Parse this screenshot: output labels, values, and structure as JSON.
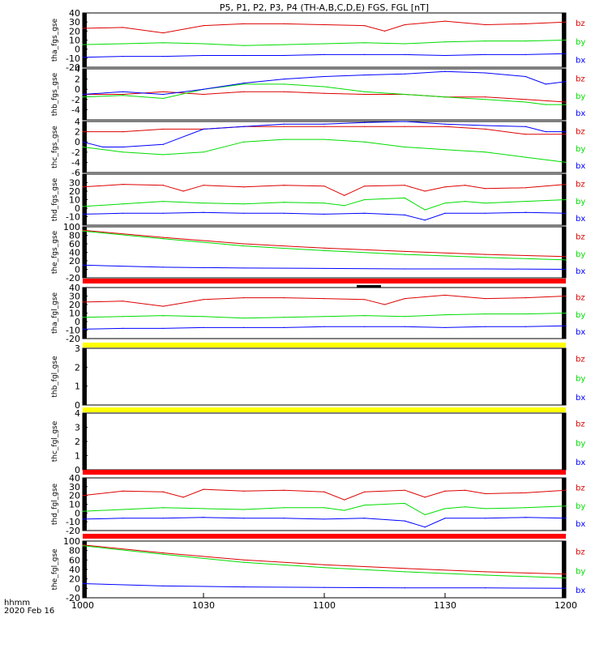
{
  "title": "P5, P1, P2, P3, P4 (TH-A,B,C,D,E) FGS, FGL [nT]",
  "colors": {
    "bx": "#0000ff",
    "by": "#00dd00",
    "bz": "#dd0000",
    "red_bar": "#ff0000",
    "yellow_bar": "#ffff00",
    "axis": "#000000"
  },
  "footer": {
    "line1": "hhmm",
    "line2": "2020 Feb 16"
  },
  "chart_data": {
    "type": "line",
    "x_range_minutes": [
      0,
      120
    ],
    "x_ticks": [
      {
        "label": "1000",
        "minute": 0
      },
      {
        "label": "1030",
        "minute": 30
      },
      {
        "label": "1100",
        "minute": 60
      },
      {
        "label": "1130",
        "minute": 90
      },
      {
        "label": "1200",
        "minute": 120
      }
    ],
    "panels": [
      {
        "ylabel": "tha_fgs_gse",
        "yrange": [
          -20,
          40
        ],
        "yticks": [
          "-20",
          "-10",
          "0",
          "10",
          "20",
          "30",
          "40"
        ],
        "legend": [
          "bz",
          "by",
          "bx"
        ],
        "series": [
          {
            "name": "bz",
            "color": "#dd0000",
            "x": [
              0,
              10,
              20,
              30,
              40,
              50,
              60,
              70,
              75,
              80,
              90,
              100,
              110,
              120
            ],
            "y": [
              23,
              24,
              18,
              26,
              28,
              28,
              27,
              26,
              20,
              27,
              31,
              27,
              28,
              30
            ]
          },
          {
            "name": "by",
            "color": "#00dd00",
            "x": [
              0,
              10,
              20,
              30,
              40,
              50,
              60,
              70,
              80,
              90,
              100,
              110,
              120
            ],
            "y": [
              5,
              6,
              7,
              6,
              4,
              5,
              6,
              7,
              6,
              8,
              9,
              9,
              10
            ]
          },
          {
            "name": "bx",
            "color": "#0000ff",
            "x": [
              0,
              10,
              20,
              30,
              40,
              50,
              60,
              70,
              80,
              90,
              100,
              110,
              120
            ],
            "y": [
              -9,
              -8,
              -8,
              -7,
              -7,
              -7,
              -6,
              -6,
              -6,
              -7,
              -6,
              -6,
              -5
            ]
          }
        ]
      },
      {
        "ylabel": "thb_fgs_gse",
        "yrange": [
          -6,
          4
        ],
        "yticks": [
          "-4",
          "-2",
          "0",
          "2",
          "4"
        ],
        "legend": [
          "bz",
          "by",
          "bx"
        ],
        "series": [
          {
            "name": "bz",
            "color": "#dd0000",
            "x": [
              0,
              10,
              20,
              30,
              40,
              50,
              60,
              70,
              80,
              90,
              100,
              110,
              120
            ],
            "y": [
              -1,
              -1,
              -0.5,
              -1,
              -0.5,
              -0.5,
              -0.8,
              -1,
              -1,
              -1.5,
              -1.5,
              -2,
              -2.5
            ]
          },
          {
            "name": "by",
            "color": "#00dd00",
            "x": [
              0,
              10,
              20,
              30,
              40,
              50,
              60,
              70,
              80,
              90,
              100,
              110,
              115,
              120
            ],
            "y": [
              -1.5,
              -1.2,
              -1.8,
              0,
              1,
              1,
              0.5,
              -0.5,
              -1,
              -1.5,
              -2,
              -2.5,
              -3,
              -3
            ]
          },
          {
            "name": "bx",
            "color": "#0000ff",
            "x": [
              0,
              10,
              20,
              30,
              40,
              50,
              60,
              70,
              80,
              90,
              100,
              110,
              115,
              120
            ],
            "y": [
              -1,
              -0.5,
              -1,
              0,
              1.2,
              2,
              2.5,
              2.8,
              3,
              3.5,
              3.2,
              2.5,
              1,
              1.5
            ]
          }
        ]
      },
      {
        "ylabel": "thc_fgs_gse",
        "yrange": [
          -6,
          4
        ],
        "yticks": [
          "-6",
          "-4",
          "-2",
          "0",
          "2",
          "4"
        ],
        "legend": [
          "bz",
          "by",
          "bx"
        ],
        "series": [
          {
            "name": "bz",
            "color": "#dd0000",
            "x": [
              0,
              10,
              20,
              30,
              40,
              50,
              60,
              70,
              80,
              90,
              100,
              110,
              120
            ],
            "y": [
              2,
              2,
              2.5,
              2.5,
              3,
              3,
              3,
              3,
              3,
              3,
              2.5,
              1.5,
              1.5
            ]
          },
          {
            "name": "by",
            "color": "#00dd00",
            "x": [
              0,
              10,
              20,
              30,
              40,
              50,
              60,
              70,
              80,
              90,
              100,
              110,
              120
            ],
            "y": [
              -1,
              -2,
              -2.5,
              -2,
              0,
              0.5,
              0.5,
              0,
              -1,
              -1.5,
              -2,
              -3,
              -4
            ]
          },
          {
            "name": "bx",
            "color": "#0000ff",
            "x": [
              0,
              5,
              10,
              20,
              30,
              40,
              50,
              60,
              70,
              80,
              90,
              100,
              110,
              115,
              120
            ],
            "y": [
              0,
              -1,
              -1,
              -0.5,
              2.5,
              3,
              3.5,
              3.5,
              3.8,
              4,
              3.5,
              3.2,
              3,
              2,
              2
            ]
          }
        ]
      },
      {
        "ylabel": "thd_fgs_gse",
        "yrange": [
          -20,
          40
        ],
        "yticks": [
          "-10",
          "0",
          "10",
          "20",
          "30"
        ],
        "legend": [
          "bz",
          "by",
          "bx"
        ],
        "series": [
          {
            "name": "bz",
            "color": "#dd0000",
            "x": [
              0,
              10,
              20,
              25,
              30,
              40,
              50,
              60,
              65,
              70,
              80,
              85,
              90,
              95,
              100,
              110,
              120
            ],
            "y": [
              25,
              28,
              27,
              20,
              27,
              25,
              27,
              26,
              15,
              26,
              27,
              20,
              25,
              27,
              23,
              24,
              28
            ]
          },
          {
            "name": "by",
            "color": "#00dd00",
            "x": [
              0,
              10,
              20,
              30,
              40,
              50,
              60,
              65,
              70,
              80,
              85,
              90,
              95,
              100,
              110,
              120
            ],
            "y": [
              2,
              5,
              8,
              6,
              5,
              7,
              6,
              3,
              10,
              12,
              -2,
              6,
              8,
              6,
              8,
              10
            ]
          },
          {
            "name": "bx",
            "color": "#0000ff",
            "x": [
              0,
              10,
              20,
              30,
              40,
              50,
              60,
              70,
              80,
              85,
              90,
              100,
              110,
              120
            ],
            "y": [
              -7,
              -6,
              -6,
              -5,
              -6,
              -6,
              -7,
              -6,
              -8,
              -14,
              -6,
              -6,
              -5,
              -6
            ]
          }
        ]
      },
      {
        "ylabel": "the_fgs_gse",
        "yrange": [
          -20,
          100
        ],
        "yticks": [
          "-20",
          "0",
          "20",
          "40",
          "60",
          "80",
          "100"
        ],
        "legend": [
          "bz",
          "by",
          "bx"
        ],
        "series": [
          {
            "name": "bz",
            "color": "#dd0000",
            "x": [
              0,
              20,
              40,
              60,
              80,
              100,
              120
            ],
            "y": [
              92,
              75,
              60,
              50,
              42,
              35,
              30
            ]
          },
          {
            "name": "by",
            "color": "#00dd00",
            "x": [
              0,
              20,
              40,
              60,
              80,
              100,
              120
            ],
            "y": [
              90,
              72,
              55,
              44,
              35,
              28,
              22
            ]
          },
          {
            "name": "bx",
            "color": "#0000ff",
            "x": [
              0,
              20,
              40,
              60,
              80,
              100,
              120
            ],
            "y": [
              10,
              5,
              3,
              2,
              1,
              1,
              0
            ]
          }
        ]
      },
      {
        "ylabel": "tha_fgl_gse",
        "yrange": [
          -20,
          40
        ],
        "yticks": [
          "-20",
          "-10",
          "0",
          "10",
          "20",
          "30",
          "40"
        ],
        "legend": [
          "bz",
          "by",
          "bx"
        ],
        "series": [
          {
            "name": "bz",
            "color": "#dd0000",
            "x": [
              0,
              10,
              20,
              30,
              40,
              50,
              60,
              70,
              75,
              80,
              90,
              100,
              110,
              120
            ],
            "y": [
              23,
              24,
              18,
              26,
              28,
              28,
              27,
              26,
              20,
              27,
              31,
              27,
              28,
              30
            ]
          },
          {
            "name": "by",
            "color": "#00dd00",
            "x": [
              0,
              10,
              20,
              30,
              40,
              50,
              60,
              70,
              80,
              90,
              100,
              110,
              120
            ],
            "y": [
              5,
              6,
              7,
              6,
              4,
              5,
              6,
              7,
              6,
              8,
              9,
              9,
              10
            ]
          },
          {
            "name": "bx",
            "color": "#0000ff",
            "x": [
              0,
              10,
              20,
              30,
              40,
              50,
              60,
              70,
              80,
              90,
              100,
              110,
              120
            ],
            "y": [
              -9,
              -8,
              -8,
              -7,
              -7,
              -7,
              -6,
              -6,
              -6,
              -7,
              -6,
              -6,
              -5
            ]
          }
        ]
      },
      {
        "ylabel": "thb_fgl_gse",
        "yrange": [
          0,
          3
        ],
        "yticks": [
          "0",
          "1",
          "2",
          "3"
        ],
        "legend": [
          "bz",
          "by",
          "bx"
        ],
        "series": []
      },
      {
        "ylabel": "thc_fgl_gse",
        "yrange": [
          0,
          4
        ],
        "yticks": [
          "0",
          "1",
          "2",
          "3",
          "4"
        ],
        "legend": [
          "bz",
          "by",
          "bx"
        ],
        "series": []
      },
      {
        "ylabel": "thd_fgl_gse",
        "yrange": [
          -20,
          40
        ],
        "yticks": [
          "-20",
          "-10",
          "0",
          "10",
          "20",
          "30",
          "40"
        ],
        "legend": [
          "bz",
          "by",
          "bx"
        ],
        "series": [
          {
            "name": "bz",
            "color": "#dd0000",
            "x": [
              0,
              10,
              20,
              25,
              30,
              40,
              50,
              60,
              65,
              70,
              80,
              85,
              90,
              95,
              100,
              110,
              120
            ],
            "y": [
              20,
              25,
              24,
              18,
              27,
              25,
              26,
              24,
              15,
              24,
              26,
              18,
              25,
              26,
              22,
              23,
              26
            ]
          },
          {
            "name": "by",
            "color": "#00dd00",
            "x": [
              0,
              10,
              20,
              30,
              40,
              50,
              60,
              65,
              70,
              80,
              85,
              90,
              95,
              100,
              110,
              120
            ],
            "y": [
              2,
              4,
              6,
              5,
              4,
              6,
              6,
              3,
              9,
              11,
              -2,
              5,
              7,
              5,
              6,
              8
            ]
          },
          {
            "name": "bx",
            "color": "#0000ff",
            "x": [
              0,
              10,
              20,
              30,
              40,
              50,
              60,
              70,
              80,
              85,
              90,
              100,
              110,
              120
            ],
            "y": [
              -7,
              -6,
              -6,
              -5,
              -6,
              -6,
              -7,
              -6,
              -9,
              -16,
              -6,
              -6,
              -5,
              -6
            ]
          }
        ]
      },
      {
        "ylabel": "the_fgl_gse",
        "yrange": [
          -20,
          100
        ],
        "yticks": [
          "-20",
          "0",
          "20",
          "40",
          "60",
          "80",
          "100"
        ],
        "legend": [
          "bz",
          "by",
          "bx"
        ],
        "series": [
          {
            "name": "bz",
            "color": "#dd0000",
            "x": [
              0,
              20,
              40,
              60,
              80,
              100,
              120
            ],
            "y": [
              92,
              75,
              60,
              50,
              42,
              35,
              30
            ]
          },
          {
            "name": "by",
            "color": "#00dd00",
            "x": [
              0,
              20,
              40,
              60,
              80,
              100,
              120
            ],
            "y": [
              90,
              72,
              55,
              44,
              35,
              28,
              22
            ]
          },
          {
            "name": "bx",
            "color": "#0000ff",
            "x": [
              0,
              20,
              40,
              60,
              80,
              100,
              120
            ],
            "y": [
              10,
              5,
              3,
              2,
              1,
              1,
              0
            ]
          }
        ]
      }
    ],
    "separator_bars": [
      {
        "after_panel": 4,
        "color": "#ff0000"
      },
      {
        "after_panel": 5,
        "color": "#ffff00"
      },
      {
        "after_panel": 6,
        "color": "#ffff00"
      },
      {
        "after_panel": 7,
        "color": "#ff0000"
      },
      {
        "after_panel": 8,
        "color": "#ff0000"
      }
    ]
  }
}
